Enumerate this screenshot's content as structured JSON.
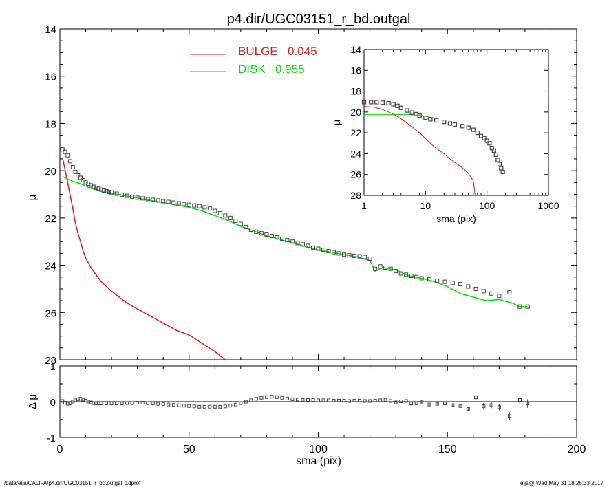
{
  "colors": {
    "bulge": "#e41a1c",
    "disk": "#00dd00",
    "data": "#444444",
    "axis": "#000000"
  },
  "footer": {
    "path": "/data/eija/CALIFA/p4.dir/UGC03151_r_bd.outgal_1dprof",
    "stamp": "eija@  Wed May 31 18:26:33 2017"
  },
  "chart_data": [
    {
      "type": "line",
      "title": "p4.dir/UGC03151_r_bd.outgal",
      "xlabel": "sma (pix)",
      "ylabel": "μ",
      "xlim": [
        0,
        200
      ],
      "ylim": [
        28,
        14
      ],
      "y_inverted": true,
      "x_ticks_labeled": false,
      "y_ticks": [
        "14",
        "16",
        "18",
        "20",
        "22",
        "24",
        "26",
        "28"
      ],
      "legend": [
        {
          "label": "BULGE",
          "value": "0.045",
          "color": "#e41a1c"
        },
        {
          "label": "DISK",
          "value": "0.955",
          "color": "#00dd00"
        }
      ],
      "legend_position": "top-center",
      "series": [
        {
          "name": "BULGE",
          "color": "#e41a1c",
          "x": [
            1,
            2,
            3,
            4,
            5,
            6,
            7,
            8,
            9,
            10,
            12,
            14,
            16,
            18,
            20,
            23,
            26,
            30,
            35,
            40,
            45,
            50,
            55,
            60,
            64
          ],
          "y": [
            19.45,
            19.95,
            20.5,
            21.05,
            21.6,
            22.2,
            22.65,
            23.0,
            23.4,
            23.7,
            24.1,
            24.4,
            24.7,
            24.9,
            25.1,
            25.35,
            25.6,
            25.85,
            26.15,
            26.45,
            26.75,
            26.95,
            27.3,
            27.65,
            28.0
          ]
        },
        {
          "name": "DISK",
          "color": "#00dd00",
          "x": [
            1,
            3,
            5,
            8,
            12,
            16,
            20,
            25,
            30,
            35,
            40,
            45,
            50,
            55,
            60,
            65,
            70,
            75,
            80,
            85,
            90,
            95,
            100,
            105,
            110,
            115,
            120,
            122,
            125,
            130,
            135,
            140,
            145,
            150,
            155,
            160,
            165,
            170,
            175,
            178,
            181
          ],
          "y": [
            20.25,
            20.35,
            20.45,
            20.55,
            20.75,
            20.85,
            20.95,
            21.05,
            21.15,
            21.25,
            21.35,
            21.45,
            21.55,
            21.7,
            21.9,
            22.1,
            22.35,
            22.55,
            22.75,
            22.9,
            23.05,
            23.2,
            23.35,
            23.45,
            23.55,
            23.65,
            23.8,
            24.25,
            24.1,
            24.2,
            24.45,
            24.55,
            24.7,
            24.9,
            25.2,
            25.35,
            25.5,
            25.45,
            25.6,
            25.75,
            25.75
          ]
        },
        {
          "name": "",
          "color": "#444444",
          "marker": "square",
          "x": [
            1,
            2,
            3,
            4,
            5,
            6,
            7,
            8,
            9,
            10,
            11,
            12,
            13,
            14,
            15,
            16,
            17,
            18,
            19,
            20,
            22,
            24,
            26,
            28,
            30,
            32,
            34,
            36,
            38,
            40,
            42,
            44,
            46,
            48,
            50,
            52,
            54,
            56,
            58,
            60,
            62,
            64,
            66,
            68,
            70,
            72,
            74,
            76,
            78,
            80,
            82,
            84,
            86,
            88,
            90,
            92,
            94,
            96,
            98,
            100,
            102,
            104,
            106,
            108,
            110,
            112,
            114,
            116,
            118,
            120,
            122,
            124,
            126,
            128,
            130,
            132,
            134,
            136,
            138,
            140,
            143,
            146,
            149,
            152,
            155,
            158,
            161,
            164,
            167,
            170,
            174,
            178,
            181
          ],
          "y": [
            19.1,
            19.2,
            19.35,
            19.6,
            19.85,
            20.05,
            20.2,
            20.3,
            20.4,
            20.5,
            20.55,
            20.62,
            20.68,
            20.72,
            20.76,
            20.8,
            20.84,
            20.87,
            20.9,
            20.92,
            20.97,
            21.02,
            21.06,
            21.1,
            21.14,
            21.17,
            21.2,
            21.23,
            21.26,
            21.29,
            21.32,
            21.35,
            21.38,
            21.41,
            21.44,
            21.47,
            21.5,
            21.55,
            21.6,
            21.7,
            21.8,
            21.9,
            22.0,
            22.12,
            22.25,
            22.38,
            22.5,
            22.58,
            22.65,
            22.7,
            22.76,
            22.82,
            22.88,
            22.94,
            23.0,
            23.06,
            23.12,
            23.18,
            23.25,
            23.3,
            23.35,
            23.4,
            23.45,
            23.5,
            23.55,
            23.58,
            23.6,
            23.62,
            23.65,
            23.72,
            24.15,
            24.05,
            24.1,
            24.15,
            24.25,
            24.35,
            24.4,
            24.45,
            24.5,
            24.55,
            24.6,
            24.65,
            24.7,
            24.75,
            24.8,
            24.9,
            25.0,
            25.1,
            25.2,
            25.3,
            25.15,
            25.75,
            25.75
          ]
        }
      ]
    },
    {
      "type": "line",
      "xlabel": "sma (pix)",
      "ylabel": "μ",
      "xscale": "log",
      "xlim": [
        1,
        1000
      ],
      "ylim": [
        28,
        14
      ],
      "y_inverted": true,
      "x_ticks": [
        "1",
        "10",
        "100",
        "1000"
      ],
      "y_ticks": [
        "14",
        "16",
        "18",
        "20",
        "22",
        "24",
        "26",
        "28"
      ],
      "series": [
        {
          "name": "BULGE",
          "color": "#e41a1c",
          "x": [
            1,
            1.5,
            2,
            3,
            4,
            5,
            6,
            8,
            10,
            12,
            15,
            20,
            25,
            30,
            40,
            50,
            60,
            64
          ],
          "y": [
            19.45,
            19.55,
            19.75,
            20.2,
            20.65,
            21.05,
            21.4,
            22.0,
            22.55,
            23.0,
            23.5,
            24.0,
            24.5,
            24.85,
            25.35,
            25.9,
            26.6,
            28.0
          ]
        },
        {
          "name": "DISK",
          "color": "#00dd00",
          "x": [
            1,
            2,
            3,
            5,
            8,
            10,
            12,
            15
          ],
          "y": [
            20.25,
            20.25,
            20.25,
            20.25,
            20.3,
            20.4,
            20.5,
            20.6
          ]
        },
        {
          "name": "",
          "color": "#444444",
          "marker": "square",
          "x": [
            1,
            1.3,
            1.6,
            2,
            2.5,
            3,
            3.5,
            4,
            5,
            6,
            7,
            8,
            10,
            12,
            15,
            20,
            25,
            30,
            40,
            50,
            60,
            70,
            80,
            90,
            100,
            110,
            120,
            130,
            140,
            150,
            160,
            170,
            181
          ],
          "y": [
            19.05,
            19.05,
            19.05,
            19.1,
            19.15,
            19.25,
            19.4,
            19.6,
            19.85,
            20.05,
            20.2,
            20.35,
            20.55,
            20.7,
            20.8,
            20.95,
            21.1,
            21.2,
            21.35,
            21.5,
            21.7,
            22.0,
            22.3,
            22.5,
            22.75,
            23.0,
            23.45,
            23.7,
            24.1,
            24.6,
            25.0,
            25.4,
            25.75
          ]
        }
      ]
    },
    {
      "type": "scatter",
      "xlabel": "sma (pix)",
      "ylabel": "Δ μ",
      "xlim": [
        0,
        200
      ],
      "ylim": [
        -1,
        1
      ],
      "x_ticks": [
        "0",
        "50",
        "100",
        "150",
        "200"
      ],
      "y_ticks": [
        "-1",
        "0",
        "1"
      ],
      "zero_line": true,
      "series": [
        {
          "name": "",
          "color": "#444444",
          "marker": "square",
          "x": [
            1,
            2,
            3,
            4,
            5,
            6,
            7,
            8,
            9,
            10,
            11,
            12,
            13,
            14,
            15,
            16,
            18,
            20,
            22,
            24,
            26,
            28,
            30,
            32,
            34,
            36,
            38,
            40,
            42,
            44,
            46,
            48,
            50,
            52,
            54,
            56,
            58,
            60,
            62,
            64,
            66,
            68,
            70,
            72,
            74,
            76,
            78,
            80,
            82,
            84,
            86,
            88,
            90,
            92,
            94,
            96,
            98,
            100,
            102,
            104,
            106,
            108,
            110,
            112,
            114,
            116,
            118,
            120,
            122,
            124,
            126,
            128,
            130,
            132,
            134,
            136,
            138,
            140,
            143,
            146,
            149,
            152,
            155,
            158,
            161,
            164,
            167,
            170,
            174,
            178,
            181
          ],
          "y": [
            0.02,
            -0.03,
            -0.06,
            -0.05,
            0.0,
            0.04,
            0.07,
            0.08,
            0.06,
            0.03,
            0.0,
            -0.02,
            -0.04,
            -0.05,
            -0.05,
            -0.05,
            -0.05,
            -0.05,
            -0.05,
            -0.05,
            -0.04,
            -0.04,
            -0.03,
            -0.03,
            -0.04,
            -0.05,
            -0.06,
            -0.07,
            -0.08,
            -0.09,
            -0.1,
            -0.11,
            -0.12,
            -0.13,
            -0.14,
            -0.14,
            -0.14,
            -0.14,
            -0.14,
            -0.13,
            -0.11,
            -0.08,
            -0.04,
            0.0,
            0.04,
            0.08,
            0.11,
            0.13,
            0.14,
            0.13,
            0.11,
            0.09,
            0.07,
            0.06,
            0.05,
            0.05,
            0.05,
            0.04,
            0.04,
            0.04,
            0.03,
            0.03,
            0.03,
            0.02,
            0.03,
            0.03,
            0.02,
            0.02,
            0.03,
            0.04,
            0.05,
            0.02,
            -0.02,
            0.01,
            0.02,
            -0.05,
            -0.05,
            0.0,
            -0.08,
            -0.06,
            -0.05,
            -0.1,
            -0.12,
            -0.2,
            0.12,
            -0.12,
            -0.1,
            -0.15,
            -0.4,
            0.05,
            -0.05
          ],
          "err": [
            0,
            0,
            0,
            0,
            0,
            0,
            0,
            0,
            0,
            0,
            0,
            0,
            0,
            0,
            0,
            0,
            0,
            0,
            0,
            0,
            0,
            0,
            0,
            0,
            0,
            0,
            0,
            0,
            0,
            0,
            0,
            0,
            0,
            0,
            0,
            0,
            0,
            0,
            0,
            0,
            0,
            0,
            0,
            0,
            0,
            0,
            0,
            0,
            0,
            0,
            0,
            0,
            0,
            0,
            0,
            0,
            0,
            0,
            0,
            0,
            0,
            0,
            0,
            0,
            0,
            0,
            0,
            0,
            0,
            0,
            0,
            0,
            0,
            0,
            0,
            0,
            0,
            0.03,
            0.04,
            0.04,
            0.04,
            0.05,
            0.05,
            0.06,
            0.07,
            0.08,
            0.08,
            0.09,
            0.1,
            0.12,
            0.12
          ]
        }
      ]
    }
  ]
}
